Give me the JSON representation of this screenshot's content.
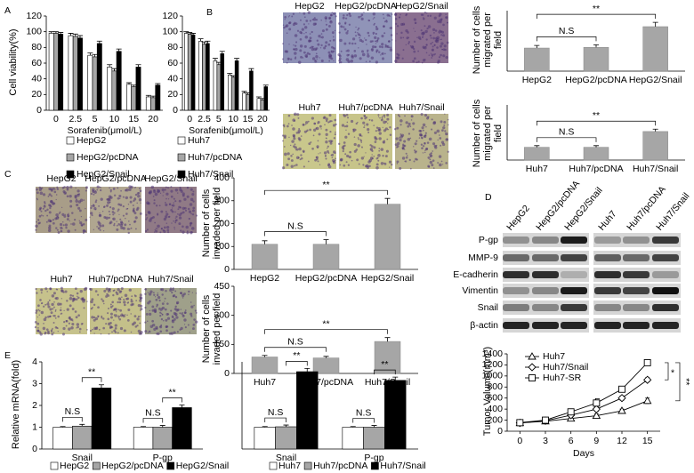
{
  "chart_data": [
    {
      "panel": "A",
      "type": "bar",
      "ylabel": "Cell viability(%)",
      "xlabel": "Sorafenib(μmol/L)",
      "categories": [
        "0",
        "2.5",
        "5",
        "10",
        "15",
        "20"
      ],
      "ylim": [
        0,
        120
      ],
      "yticks": [
        0,
        20,
        40,
        60,
        80,
        100,
        120
      ],
      "series": [
        {
          "name": "HepG2",
          "color": "#ffffff",
          "values": [
            98,
            95,
            70,
            55,
            33,
            17
          ],
          "errors": [
            2,
            3,
            3,
            3,
            2,
            2
          ]
        },
        {
          "name": "HepG2/pcDNA",
          "color": "#a6a6a6",
          "values": [
            98,
            94,
            68,
            50,
            30,
            16
          ],
          "errors": [
            2,
            3,
            3,
            3,
            2,
            2
          ]
        },
        {
          "name": "HepG2/Snail",
          "color": "#000000",
          "values": [
            97,
            92,
            85,
            75,
            55,
            32
          ],
          "errors": [
            2,
            3,
            3,
            3,
            3,
            2
          ]
        }
      ]
    },
    {
      "type": "bar",
      "xlabel": "Sorafenib(μmol/L)",
      "categories": [
        "0",
        "2.5",
        "5",
        "10",
        "15",
        "20"
      ],
      "ylim": [
        0,
        120
      ],
      "yticks": [
        0,
        20,
        40,
        60,
        80,
        100,
        120
      ],
      "series": [
        {
          "name": "Huh7",
          "color": "#ffffff",
          "values": [
            98,
            88,
            63,
            45,
            22,
            15
          ],
          "errors": [
            2,
            3,
            3,
            2,
            2,
            2
          ]
        },
        {
          "name": "Huh7/pcDNA",
          "color": "#a6a6a6",
          "values": [
            97,
            84,
            58,
            42,
            20,
            13
          ],
          "errors": [
            2,
            3,
            3,
            2,
            2,
            2
          ]
        },
        {
          "name": "Huh7/Snail",
          "color": "#000000",
          "values": [
            96,
            85,
            72,
            63,
            50,
            30
          ],
          "errors": [
            2,
            3,
            3,
            3,
            3,
            2
          ]
        }
      ]
    },
    {
      "panel": "B",
      "type": "bar",
      "ylabel": "Number of cells migrated per field",
      "image_labels": [
        "HepG2",
        "HepG2/pcDNA",
        "HepG2/Snail"
      ],
      "categories": [
        "HepG2",
        "HepG2/pcDNA",
        "HepG2/Snail"
      ],
      "values": [
        107,
        110,
        206
      ],
      "errors": [
        12,
        12,
        20
      ],
      "color": "#a6a6a6",
      "ylim": [
        0,
        280
      ],
      "annotations": [
        "N.S",
        "**"
      ]
    },
    {
      "type": "bar",
      "ylabel": "Number of cells migrated per field",
      "image_labels": [
        "Huh7",
        "Huh7/pcDNA",
        "Huh7/Snail"
      ],
      "categories": [
        "Huh7",
        "Huh7/pcDNA",
        "Huh7/Snail"
      ],
      "values": [
        65,
        65,
        145
      ],
      "errors": [
        8,
        8,
        12
      ],
      "color": "#a6a6a6",
      "ylim": [
        0,
        280
      ],
      "annotations": [
        "N.S",
        "**"
      ]
    },
    {
      "panel": "C",
      "type": "bar",
      "ylabel": "Number of cells invaded per field",
      "image_labels": [
        "HepG2",
        "HepG2/pcDNA",
        "HepG2/Snail"
      ],
      "categories": [
        "HepG2",
        "HepG2/pcDNA",
        "HepG2/Snail"
      ],
      "values": [
        110,
        110,
        285
      ],
      "errors": [
        15,
        20,
        25
      ],
      "color": "#a6a6a6",
      "ylim": [
        0,
        400
      ],
      "yticks": [
        0,
        100,
        200,
        300,
        400
      ],
      "annotations": [
        "N.S",
        "**"
      ]
    },
    {
      "type": "bar",
      "ylabel": "Number of cells invaded per field",
      "image_labels": [
        "Huh7",
        "Huh7/pcDNA",
        "Huh7/Snail"
      ],
      "categories": [
        "Huh7",
        "Huh7/pcDNA",
        "Huh7/Snail"
      ],
      "values": [
        85,
        80,
        165
      ],
      "errors": [
        8,
        8,
        20
      ],
      "color": "#a6a6a6",
      "ylim": [
        0,
        450
      ],
      "yticks": [
        0,
        150,
        300,
        450
      ],
      "annotations": [
        "N.S",
        "**"
      ]
    },
    {
      "panel": "D",
      "type": "blot",
      "lanes": [
        "HepG2",
        "HepG2/pcDNA",
        "HepG2/Snail",
        "Huh7",
        "Huh7/pcDNA",
        "Huh7/Snail"
      ],
      "rows": [
        "P-gp",
        "MMP-9",
        "E-cadherin",
        "Vimentin",
        "Snail",
        "β-actin"
      ]
    },
    {
      "panel": "E",
      "type": "bar",
      "ylabel": "Relative mRNA(fold)",
      "categories": [
        "Snail",
        "P-gp"
      ],
      "ylim": [
        0,
        4
      ],
      "yticks": [
        0,
        1,
        2,
        3,
        4
      ],
      "annotations": [
        "N.S",
        "**",
        "N.S",
        "**"
      ],
      "legend": "bottom",
      "series": [
        {
          "name": "HepG2",
          "color": "#ffffff",
          "values": [
            1,
            1
          ],
          "errors": [
            0.03,
            0.03
          ]
        },
        {
          "name": "HepG2/pcDNA",
          "color": "#a6a6a6",
          "values": [
            1.05,
            1
          ],
          "errors": [
            0.08,
            0.08
          ]
        },
        {
          "name": "HepG2/Snail",
          "color": "#000000",
          "values": [
            2.8,
            1.9
          ],
          "errors": [
            0.15,
            0.12
          ]
        }
      ]
    },
    {
      "type": "bar",
      "categories": [
        "Snail",
        "P-gp"
      ],
      "ylim": [
        0,
        4
      ],
      "annotations": [
        "N.S",
        "**",
        "N.S",
        "**"
      ],
      "legend": "bottom",
      "series": [
        {
          "name": "Huh7",
          "color": "#ffffff",
          "values": [
            1,
            1
          ],
          "errors": [
            0.03,
            0.03
          ]
        },
        {
          "name": "Huh7/pcDNA",
          "color": "#a6a6a6",
          "values": [
            1.02,
            1
          ],
          "errors": [
            0.08,
            0.08
          ]
        },
        {
          "name": "Huh7/Snail",
          "color": "#000000",
          "values": [
            3.55,
            3.15
          ],
          "errors": [
            0.15,
            0.15
          ]
        }
      ]
    },
    {
      "panel": "F",
      "type": "line",
      "xlabel": "Days",
      "ylabel": "Tumor Volume(mm³)",
      "x": [
        0,
        3,
        6,
        9,
        12,
        15
      ],
      "xlim": [
        -1.5,
        16.5
      ],
      "xticks": [
        0,
        3,
        6,
        9,
        12,
        15
      ],
      "ylim": [
        0,
        1400
      ],
      "yticks": [
        0,
        200,
        400,
        600,
        800,
        1000,
        1200,
        1400
      ],
      "annotations": [
        "*",
        "**"
      ],
      "series": [
        {
          "name": "Huh7",
          "color": "#000000",
          "marker": "triangle",
          "values": [
            150,
            180,
            230,
            280,
            370,
            550
          ],
          "errors": [
            20,
            25,
            30,
            35,
            30,
            50
          ]
        },
        {
          "name": "Huh7/Snail",
          "color": "#000000",
          "marker": "diamond",
          "values": [
            150,
            190,
            290,
            400,
            600,
            930
          ],
          "errors": [
            20,
            25,
            30,
            40,
            40,
            40
          ]
        },
        {
          "name": "Huh7-SR",
          "color": "#000000",
          "marker": "square",
          "values": [
            155,
            200,
            350,
            510,
            760,
            1240
          ],
          "errors": [
            20,
            30,
            35,
            45,
            40,
            50
          ]
        }
      ]
    }
  ]
}
